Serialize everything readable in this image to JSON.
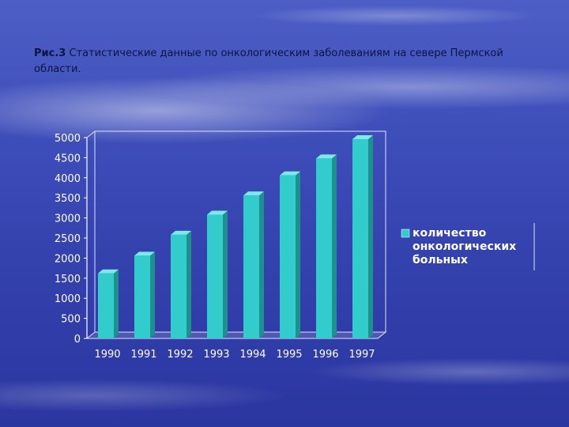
{
  "caption": {
    "prefix": "Рис.3",
    "text": " Статистические данные по онкологическим заболеваниям на севере Пермской области."
  },
  "chart_data": {
    "type": "bar",
    "categories": [
      "1990",
      "1991",
      "1992",
      "1993",
      "1994",
      "1995",
      "1996",
      "1997"
    ],
    "series": [
      {
        "name": "количество онкологических больных",
        "values": [
          1620,
          2060,
          2580,
          3080,
          3560,
          4060,
          4480,
          4960
        ],
        "color": "#33cccc"
      }
    ],
    "ylim": [
      0,
      5000
    ],
    "yticks": [
      0,
      500,
      1000,
      1500,
      2000,
      2500,
      3000,
      3500,
      4000,
      4500,
      5000
    ],
    "legend_lines": [
      "количество",
      "онкологических",
      "больных"
    ],
    "legend_position": "right",
    "grid": false,
    "title": "",
    "xlabel": "",
    "ylabel": ""
  }
}
